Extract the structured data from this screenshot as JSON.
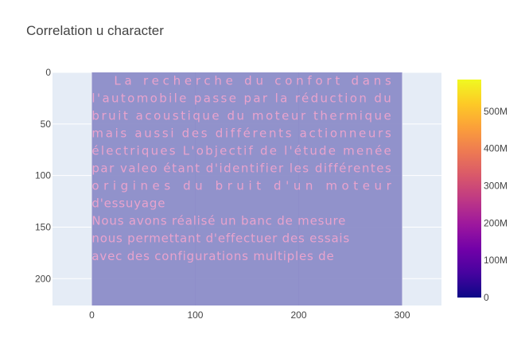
{
  "chart_data": {
    "type": "heatmap",
    "title": "Correlation u character",
    "xlabel": "",
    "ylabel": "",
    "xlim": [
      -38,
      338
    ],
    "ylim": [
      226,
      0
    ],
    "x_ticks": [
      0,
      100,
      200,
      300
    ],
    "x_tick_labels": [
      "0",
      "100",
      "200",
      "300"
    ],
    "y_ticks": [
      0,
      50,
      100,
      150,
      200
    ],
    "y_tick_labels": [
      "0",
      "50",
      "100",
      "150",
      "200"
    ],
    "image_extent": {
      "x": [
        0,
        300
      ],
      "y": [
        0,
        226
      ]
    },
    "image_text_lines": [
      {
        "text": "La recherche du confort dans",
        "x": 0,
        "y": 8,
        "justify": true,
        "indent": 28
      },
      {
        "text": "l'automobile passe par la réduction du",
        "x": 0,
        "y": 25,
        "justify": true
      },
      {
        "text": "bruit acoustique du moteur thermique",
        "x": 0,
        "y": 42,
        "justify": true
      },
      {
        "text": "mais aussi des différents actionneurs",
        "x": 0,
        "y": 59,
        "justify": true
      },
      {
        "text": "électriques L'objectif de l'étude menée",
        "x": 0,
        "y": 76,
        "justify": true
      },
      {
        "text": "par valeo étant d'identifier les différentes",
        "x": 0,
        "y": 93,
        "justify": true
      },
      {
        "text": "origines du bruit d'un moteur",
        "x": 0,
        "y": 110,
        "justify": true
      },
      {
        "text": "d'essuyage",
        "x": 0,
        "y": 127,
        "justify": false
      },
      {
        "text": "Nous avons réalisé un banc de mesure",
        "x": 0,
        "y": 144,
        "justify": false
      },
      {
        "text": "nous permettant d'effectuer des essais",
        "x": 0,
        "y": 161,
        "justify": false
      },
      {
        "text": "avec des configurations multiples de",
        "x": 0,
        "y": 178,
        "justify": false
      }
    ],
    "colorbar": {
      "range": [
        0,
        585000000
      ],
      "ticks": [
        0,
        100000000,
        200000000,
        300000000,
        400000000,
        500000000
      ],
      "tick_labels": [
        "0",
        "100M",
        "200M",
        "300M",
        "400M",
        "500M"
      ],
      "colorscale": [
        "#0d0887",
        "#46039f",
        "#7201a8",
        "#9c179e",
        "#bd3786",
        "#d8576b",
        "#ed7953",
        "#fb9f3a",
        "#fdca26",
        "#f0f921"
      ]
    },
    "colors": {
      "plot_bg": "#e5ecf6",
      "grid": "#ffffff",
      "image_fill": "#8c8dc8",
      "text_color": "#e9a3cd"
    }
  }
}
